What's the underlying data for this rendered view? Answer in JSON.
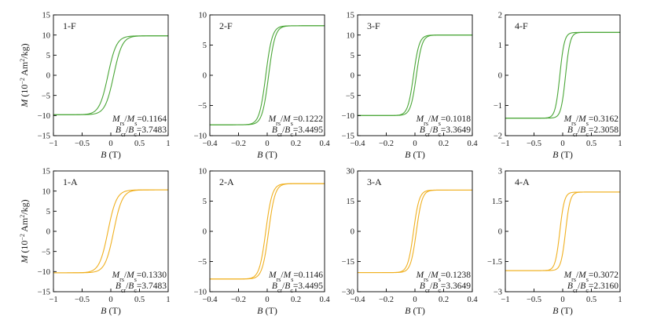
{
  "chart_data": [
    {
      "id": "1-F",
      "type": "line",
      "panel_label": "1-F",
      "color": "#4aa637",
      "xlabel_var": "B",
      "xlabel_unit": "(T)",
      "ylabel_var": "M",
      "ylabel_unit_pre": "(10",
      "ylabel_unit_exp": "−2",
      "ylabel_unit_mid": " Am",
      "ylabel_unit_exp2": "2",
      "ylabel_unit_post": "/kg)",
      "xlim": [
        -1,
        1
      ],
      "ylim": [
        -15,
        15
      ],
      "xticks": [
        -1,
        -0.5,
        0,
        0.5,
        1
      ],
      "xtick_labels": [
        "−1",
        "−0.5",
        "0",
        "0.5",
        "1"
      ],
      "yticks": [
        -15,
        -10,
        -5,
        0,
        5,
        10,
        15
      ],
      "ytick_labels": [
        "−15",
        "−10",
        "−5",
        "0",
        "5",
        "10",
        "15"
      ],
      "series": [
        {
          "name": "hysteresis loop",
          "Ms": 9.8,
          "Mr": 1.14,
          "Hc": 0.05,
          "width": 0.15
        }
      ],
      "annotations": {
        "mrs_ms": "0.1164",
        "bcr_bc": "3.7483"
      }
    },
    {
      "id": "2-F",
      "type": "line",
      "panel_label": "2-F",
      "color": "#4aa637",
      "xlabel_var": "B",
      "xlabel_unit": "(T)",
      "ylabel_var": "",
      "ylabel_unit_pre": "",
      "ylabel_unit_exp": "",
      "ylabel_unit_mid": "",
      "ylabel_unit_exp2": "",
      "ylabel_unit_post": "",
      "xlim": [
        -0.4,
        0.4
      ],
      "ylim": [
        -10,
        10
      ],
      "xticks": [
        -0.4,
        -0.2,
        0,
        0.2,
        0.4
      ],
      "xtick_labels": [
        "−0.4",
        "−0.2",
        "0",
        "0.2",
        "0.4"
      ],
      "yticks": [
        -10,
        -5,
        0,
        5,
        10
      ],
      "ytick_labels": [
        "−10",
        "−5",
        "0",
        "5",
        "10"
      ],
      "series": [
        {
          "name": "hysteresis loop",
          "Ms": 8.2,
          "Mr": 1.0,
          "Hc": 0.01,
          "width": 0.045
        }
      ],
      "annotations": {
        "mrs_ms": "0.1222",
        "bcr_bc": "3.4495"
      }
    },
    {
      "id": "3-F",
      "type": "line",
      "panel_label": "3-F",
      "color": "#4aa637",
      "xlabel_var": "B",
      "xlabel_unit": "(T)",
      "ylabel_var": "",
      "ylabel_unit_pre": "",
      "ylabel_unit_exp": "",
      "ylabel_unit_mid": "",
      "ylabel_unit_exp2": "",
      "ylabel_unit_post": "",
      "xlim": [
        -0.4,
        0.4
      ],
      "ylim": [
        -15,
        15
      ],
      "xticks": [
        -0.4,
        -0.2,
        0,
        0.2,
        0.4
      ],
      "xtick_labels": [
        "−0.4",
        "−0.2",
        "0",
        "0.2",
        "0.4"
      ],
      "yticks": [
        -15,
        -10,
        -5,
        0,
        5,
        10,
        15
      ],
      "ytick_labels": [
        "−15",
        "−10",
        "−5",
        "0",
        "5",
        "10",
        "15"
      ],
      "series": [
        {
          "name": "hysteresis loop",
          "Ms": 10.0,
          "Mr": 1.02,
          "Hc": 0.01,
          "width": 0.04
        }
      ],
      "annotations": {
        "mrs_ms": "0.1018",
        "bcr_bc": "3.3649"
      }
    },
    {
      "id": "4-F",
      "type": "line",
      "panel_label": "4-F",
      "color": "#4aa637",
      "xlabel_var": "B",
      "xlabel_unit": "(T)",
      "ylabel_var": "",
      "ylabel_unit_pre": "",
      "ylabel_unit_exp": "",
      "ylabel_unit_mid": "",
      "ylabel_unit_exp2": "",
      "ylabel_unit_post": "",
      "xlim": [
        -1,
        1
      ],
      "ylim": [
        -2,
        2
      ],
      "xticks": [
        -1,
        -0.5,
        0,
        0.5,
        1
      ],
      "xtick_labels": [
        "−1",
        "−0.5",
        "0",
        "0.5",
        "1"
      ],
      "yticks": [
        -2,
        -1,
        0,
        1,
        2
      ],
      "ytick_labels": [
        "−2",
        "−1",
        "0",
        "1",
        "2"
      ],
      "series": [
        {
          "name": "hysteresis loop",
          "Ms": 1.42,
          "Mr": 0.45,
          "Hc": 0.05,
          "width": 0.08
        }
      ],
      "annotations": {
        "mrs_ms": "0.3162",
        "bcr_bc": "2.3058"
      }
    },
    {
      "id": "1-A",
      "type": "line",
      "panel_label": "1-A",
      "color": "#f0b020",
      "xlabel_var": "B",
      "xlabel_unit": "(T)",
      "ylabel_var": "M",
      "ylabel_unit_pre": "(10",
      "ylabel_unit_exp": "−2",
      "ylabel_unit_mid": " Am",
      "ylabel_unit_exp2": "2",
      "ylabel_unit_post": "/kg)",
      "xlim": [
        -1,
        1
      ],
      "ylim": [
        -15,
        15
      ],
      "xticks": [
        -1,
        -0.5,
        0,
        0.5,
        1
      ],
      "xtick_labels": [
        "−1",
        "−0.5",
        "0",
        "0.5",
        "1"
      ],
      "yticks": [
        -15,
        -10,
        -5,
        0,
        5,
        10,
        15
      ],
      "ytick_labels": [
        "−15",
        "−10",
        "−5",
        "0",
        "5",
        "10",
        "15"
      ],
      "series": [
        {
          "name": "hysteresis loop",
          "Ms": 10.3,
          "Mr": 1.37,
          "Hc": 0.05,
          "width": 0.15
        }
      ],
      "annotations": {
        "mrs_ms": "0.1330",
        "bcr_bc": "3.7483"
      }
    },
    {
      "id": "2-A",
      "type": "line",
      "panel_label": "2-A",
      "color": "#f0b020",
      "xlabel_var": "B",
      "xlabel_unit": "(T)",
      "ylabel_var": "",
      "ylabel_unit_pre": "",
      "ylabel_unit_exp": "",
      "ylabel_unit_mid": "",
      "ylabel_unit_exp2": "",
      "ylabel_unit_post": "",
      "xlim": [
        -0.4,
        0.4
      ],
      "ylim": [
        -10,
        10
      ],
      "xticks": [
        -0.4,
        -0.2,
        0,
        0.2,
        0.4
      ],
      "xtick_labels": [
        "−0.4",
        "−0.2",
        "0",
        "0.2",
        "0.4"
      ],
      "yticks": [
        -10,
        -5,
        0,
        5,
        10
      ],
      "ytick_labels": [
        "−10",
        "−5",
        "0",
        "5",
        "10"
      ],
      "series": [
        {
          "name": "hysteresis loop",
          "Ms": 7.9,
          "Mr": 0.9,
          "Hc": 0.01,
          "width": 0.045
        }
      ],
      "annotations": {
        "mrs_ms": "0.1146",
        "bcr_bc": "3.4495"
      }
    },
    {
      "id": "3-A",
      "type": "line",
      "panel_label": "3-A",
      "color": "#f0b020",
      "xlabel_var": "B",
      "xlabel_unit": "(T)",
      "ylabel_var": "",
      "ylabel_unit_pre": "",
      "ylabel_unit_exp": "",
      "ylabel_unit_mid": "",
      "ylabel_unit_exp2": "",
      "ylabel_unit_post": "",
      "xlim": [
        -0.4,
        0.4
      ],
      "ylim": [
        -30,
        30
      ],
      "xticks": [
        -0.4,
        -0.2,
        0,
        0.2,
        0.4
      ],
      "xtick_labels": [
        "−0.4",
        "−0.2",
        "0",
        "0.2",
        "0.4"
      ],
      "yticks": [
        -30,
        -15,
        0,
        15,
        30
      ],
      "ytick_labels": [
        "−30",
        "−15",
        "0",
        "15",
        "30"
      ],
      "series": [
        {
          "name": "hysteresis loop",
          "Ms": 20.5,
          "Mr": 2.5,
          "Hc": 0.01,
          "width": 0.04
        }
      ],
      "annotations": {
        "mrs_ms": "0.1238",
        "bcr_bc": "3.3649"
      }
    },
    {
      "id": "4-A",
      "type": "line",
      "panel_label": "4-A",
      "color": "#f0b020",
      "xlabel_var": "B",
      "xlabel_unit": "(T)",
      "ylabel_var": "",
      "ylabel_unit_pre": "",
      "ylabel_unit_exp": "",
      "ylabel_unit_mid": "",
      "ylabel_unit_exp2": "",
      "ylabel_unit_post": "",
      "xlim": [
        -1,
        1
      ],
      "ylim": [
        -3,
        3
      ],
      "xticks": [
        -1,
        -0.5,
        0,
        0.5,
        1
      ],
      "xtick_labels": [
        "−1",
        "−0.5",
        "0",
        "0.5",
        "1"
      ],
      "yticks": [
        -3,
        -1.5,
        0,
        1.5,
        3
      ],
      "ytick_labels": [
        "−3",
        "−1.5",
        "0",
        "1.5",
        "3"
      ],
      "series": [
        {
          "name": "hysteresis loop",
          "Ms": 1.95,
          "Mr": 0.6,
          "Hc": 0.05,
          "width": 0.08
        }
      ],
      "annotations": {
        "mrs_ms": "0.3072",
        "bcr_bc": "2.3160"
      }
    }
  ],
  "annotation_text": {
    "mrs": "M",
    "mrs_sub": "rs",
    "slash": "/",
    "ms": "M",
    "ms_sub": "s",
    "eq": "=",
    "bcr": "B",
    "bcr_sub": "cr",
    "bc": "B",
    "bc_sub": "c"
  }
}
